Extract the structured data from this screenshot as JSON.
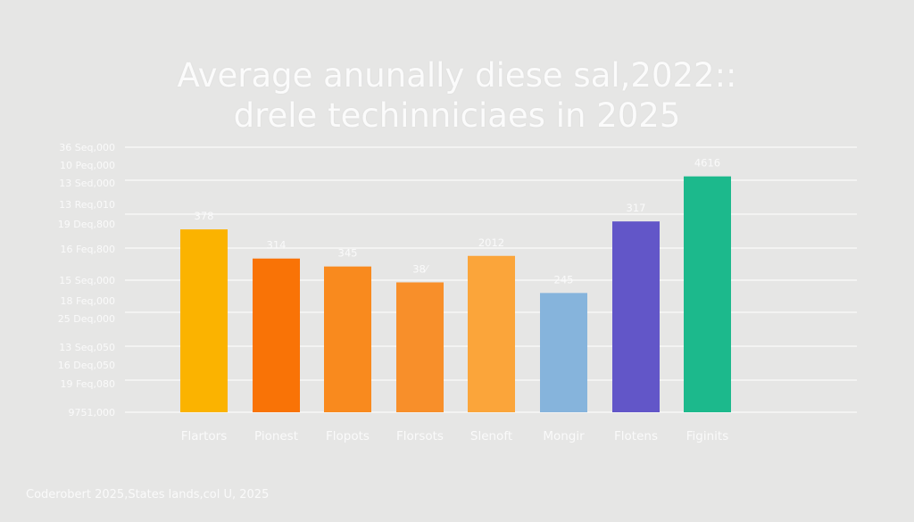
{
  "chart_data": {
    "type": "bar",
    "title_lines": [
      "Average anunally diese sal,2022::",
      "drele techinniciaes in 2025"
    ],
    "y_tick_labels": [
      "36 Seq,000",
      "10 Peq,000",
      "13 Sed,000",
      "13 Req,010",
      "19 Deq,800",
      "16 Feq,800",
      "15 Seq,000",
      "18 Feq,000",
      "25 Deq,000",
      "13 Seq,050",
      "16 Deq,050",
      "19 Feq,080",
      "9751,000"
    ],
    "categories": [
      "Flartors",
      "Pionest",
      "Flopots",
      "Florsots",
      "Slenoft",
      "Mongir",
      "Flotens",
      "Figinits"
    ],
    "data_labels": [
      "378",
      "314",
      "345",
      "38⁄",
      "2012",
      "245",
      "317",
      "4616"
    ],
    "bar_levels": [
      0.69,
      0.58,
      0.55,
      0.49,
      0.59,
      0.45,
      0.72,
      0.89
    ],
    "level_range": [
      0,
      1
    ],
    "colors": [
      "#fbb300",
      "#f97306",
      "#f98a1e",
      "#f88f2a",
      "#fba53a",
      "#86b4dc",
      "#6256c8",
      "#1cb98c"
    ],
    "grid": true,
    "legend": "none"
  },
  "footer": "Coderobert 2025,States lands,col U, 2025"
}
